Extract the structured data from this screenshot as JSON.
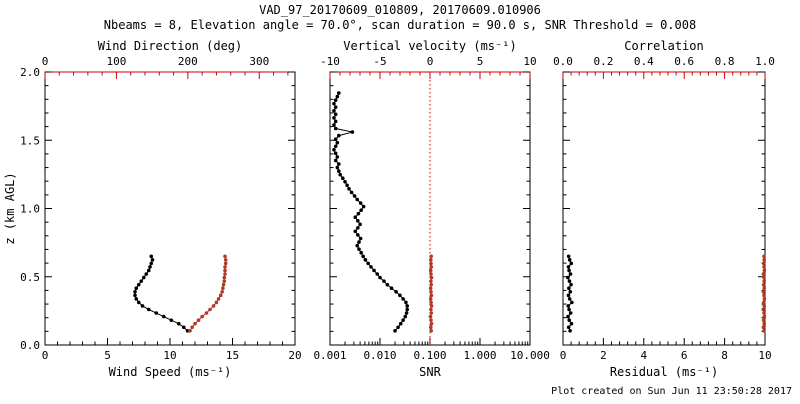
{
  "header": {
    "title": "VAD_97_20170609_010809, 20170609.010906",
    "subtitle": "Nbeams = 8, Elevation angle = 70.0°, scan duration = 90.0 s, SNR Threshold = 0.008"
  },
  "footer": {
    "created": "Plot created on Sun Jun 11 23:50:28 2017"
  },
  "colors": {
    "axis_red": "#cc0000",
    "series_red": "#b03a26",
    "black": "#000000"
  },
  "chart_data": [
    {
      "type": "line",
      "name": "wind-panel",
      "y_axis": {
        "label": "z (km AGL)",
        "min": 0,
        "max": 2,
        "ticks": [
          0,
          0.5,
          1,
          1.5,
          2
        ],
        "tick_labels": [
          "0.0",
          "0.5",
          "1.0",
          "1.5",
          "2.0"
        ],
        "show_labels": true
      },
      "bottom_axis": {
        "label": "Wind Speed (ms⁻¹)",
        "min": 0,
        "max": 20,
        "ticks": [
          0,
          5,
          10,
          15,
          20
        ],
        "tick_labels": [
          "0",
          "5",
          "10",
          "15",
          "20"
        ]
      },
      "top_axis": {
        "label": "Wind Direction (deg)",
        "min": 0,
        "max": 350,
        "ticks": [
          0,
          100,
          200,
          300
        ],
        "tick_labels": [
          "0",
          "100",
          "200",
          "300"
        ]
      },
      "series": [
        {
          "name": "wind-speed",
          "axis": "bottom",
          "color": "black",
          "z": [
            0.104,
            0.13,
            0.156,
            0.182,
            0.208,
            0.234,
            0.26,
            0.286,
            0.312,
            0.338,
            0.364,
            0.39,
            0.416,
            0.442,
            0.468,
            0.494,
            0.52,
            0.546,
            0.572,
            0.598,
            0.624,
            0.65
          ],
          "values": [
            11.4,
            11.1,
            10.7,
            10.1,
            9.5,
            8.9,
            8.3,
            7.8,
            7.5,
            7.3,
            7.2,
            7.2,
            7.3,
            7.5,
            7.7,
            7.9,
            8.1,
            8.3,
            8.4,
            8.5,
            8.6,
            8.5
          ]
        },
        {
          "name": "wind-direction",
          "axis": "top",
          "color": "red",
          "z": [
            0.104,
            0.13,
            0.156,
            0.182,
            0.208,
            0.234,
            0.26,
            0.286,
            0.312,
            0.338,
            0.364,
            0.39,
            0.416,
            0.442,
            0.468,
            0.494,
            0.52,
            0.546,
            0.572,
            0.598,
            0.624,
            0.65
          ],
          "values": [
            203,
            206,
            210,
            215,
            220,
            226,
            231,
            236,
            240,
            243,
            246,
            248,
            249,
            250,
            251,
            251,
            252,
            252,
            252,
            253,
            253,
            252
          ]
        }
      ]
    },
    {
      "type": "line",
      "name": "snr-panel",
      "y_axis": {
        "label": "",
        "min": 0,
        "max": 2,
        "ticks": [
          0,
          0.5,
          1,
          1.5,
          2
        ],
        "tick_labels": [
          "0.0",
          "0.5",
          "1.0",
          "1.5",
          "2.0"
        ],
        "show_labels": false
      },
      "bottom_axis": {
        "label": "SNR",
        "scale": "log",
        "min": 0.001,
        "max": 10,
        "ticks": [
          0.001,
          0.01,
          0.1,
          1,
          10
        ],
        "tick_labels": [
          "0.001",
          "0.010",
          "0.100",
          "1.000",
          "10.000"
        ]
      },
      "top_axis": {
        "label": "Vertical velocity (ms⁻¹)",
        "min": -10,
        "max": 10,
        "ticks": [
          -10,
          -5,
          0,
          5,
          10
        ],
        "tick_labels": [
          "-10",
          "-5",
          "0",
          "5",
          "10"
        ]
      },
      "ref_line": {
        "axis": "top",
        "value": 0,
        "color": "red",
        "dash": "dotted"
      },
      "series": [
        {
          "name": "snr",
          "axis": "bottom",
          "color": "black",
          "z": [
            0.104,
            0.13,
            0.156,
            0.182,
            0.208,
            0.234,
            0.26,
            0.286,
            0.312,
            0.338,
            0.364,
            0.39,
            0.416,
            0.442,
            0.468,
            0.494,
            0.52,
            0.546,
            0.572,
            0.598,
            0.624,
            0.65,
            0.676,
            0.702,
            0.728,
            0.754,
            0.78,
            0.806,
            0.832,
            0.858,
            0.884,
            0.91,
            0.936,
            0.962,
            0.988,
            1.014,
            1.04,
            1.066,
            1.092,
            1.118,
            1.144,
            1.17,
            1.196,
            1.222,
            1.248,
            1.274,
            1.3,
            1.326,
            1.352,
            1.378,
            1.404,
            1.43,
            1.456,
            1.482,
            1.508,
            1.534,
            1.56,
            1.586,
            1.612,
            1.638,
            1.664,
            1.69,
            1.716,
            1.742,
            1.768,
            1.794,
            1.82,
            1.846
          ],
          "values": [
            0.02,
            0.023,
            0.026,
            0.029,
            0.032,
            0.034,
            0.035,
            0.035,
            0.033,
            0.029,
            0.025,
            0.021,
            0.017,
            0.014,
            0.012,
            0.01,
            0.0088,
            0.0076,
            0.0066,
            0.0058,
            0.0051,
            0.0046,
            0.0042,
            0.0038,
            0.0035,
            0.0038,
            0.0041,
            0.0036,
            0.0032,
            0.0036,
            0.004,
            0.0036,
            0.0032,
            0.0037,
            0.0042,
            0.0047,
            0.0041,
            0.0035,
            0.0031,
            0.0027,
            0.0024,
            0.0022,
            0.002,
            0.0018,
            0.0016,
            0.0015,
            0.0014,
            0.0015,
            0.0013,
            0.0014,
            0.0013,
            0.0012,
            0.0013,
            0.0014,
            0.0013,
            0.0015,
            0.0028,
            0.0013,
            0.0012,
            0.0013,
            0.0012,
            0.0013,
            0.0012,
            0.0013,
            0.0012,
            0.0013,
            0.0014,
            0.0015
          ]
        },
        {
          "name": "vertical-velocity",
          "axis": "top",
          "color": "red",
          "z": [
            0.104,
            0.13,
            0.156,
            0.182,
            0.208,
            0.234,
            0.26,
            0.286,
            0.312,
            0.338,
            0.364,
            0.39,
            0.416,
            0.442,
            0.468,
            0.494,
            0.52,
            0.546,
            0.572,
            0.598,
            0.624,
            0.65
          ],
          "values": [
            0.12,
            0.08,
            0.15,
            0.1,
            0.05,
            0.13,
            0.09,
            0.16,
            0.11,
            0.07,
            0.14,
            0.1,
            0.06,
            0.12,
            0.09,
            0.15,
            0.1,
            0.07,
            0.13,
            0.1,
            0.08,
            0.12
          ]
        }
      ]
    },
    {
      "type": "line",
      "name": "residual-panel",
      "y_axis": {
        "label": "",
        "min": 0,
        "max": 2,
        "ticks": [
          0,
          0.5,
          1,
          1.5,
          2
        ],
        "tick_labels": [
          "0.0",
          "0.5",
          "1.0",
          "1.5",
          "2.0"
        ],
        "show_labels": false
      },
      "bottom_axis": {
        "label": "Residual (ms⁻¹)",
        "min": 0,
        "max": 10,
        "ticks": [
          0,
          2,
          4,
          6,
          8,
          10
        ],
        "tick_labels": [
          "0",
          "2",
          "4",
          "6",
          "8",
          "10"
        ]
      },
      "top_axis": {
        "label": "Correlation",
        "min": 0,
        "max": 1,
        "ticks": [
          0,
          0.2,
          0.4,
          0.6,
          0.8,
          1
        ],
        "tick_labels": [
          "0.0",
          "0.2",
          "0.4",
          "0.6",
          "0.8",
          "1.0"
        ]
      },
      "series": [
        {
          "name": "residual",
          "axis": "bottom",
          "color": "black",
          "z": [
            0.104,
            0.13,
            0.156,
            0.182,
            0.208,
            0.234,
            0.26,
            0.286,
            0.312,
            0.338,
            0.364,
            0.39,
            0.416,
            0.442,
            0.468,
            0.494,
            0.52,
            0.546,
            0.572,
            0.598,
            0.624,
            0.65
          ],
          "values": [
            0.35,
            0.28,
            0.42,
            0.31,
            0.25,
            0.38,
            0.3,
            0.26,
            0.44,
            0.33,
            0.27,
            0.36,
            0.29,
            0.4,
            0.32,
            0.24,
            0.37,
            0.3,
            0.27,
            0.41,
            0.33,
            0.28
          ]
        },
        {
          "name": "correlation",
          "axis": "top",
          "color": "red",
          "z": [
            0.104,
            0.13,
            0.156,
            0.182,
            0.208,
            0.234,
            0.26,
            0.286,
            0.312,
            0.338,
            0.364,
            0.39,
            0.416,
            0.442,
            0.468,
            0.494,
            0.52,
            0.546,
            0.572,
            0.598,
            0.624,
            0.65
          ],
          "values": [
            0.995,
            0.992,
            0.996,
            0.993,
            0.997,
            0.995,
            0.991,
            0.996,
            0.994,
            0.997,
            0.995,
            0.992,
            0.996,
            0.993,
            0.996,
            0.995,
            0.992,
            0.997,
            0.995,
            0.993,
            0.996,
            0.995
          ]
        }
      ]
    }
  ]
}
